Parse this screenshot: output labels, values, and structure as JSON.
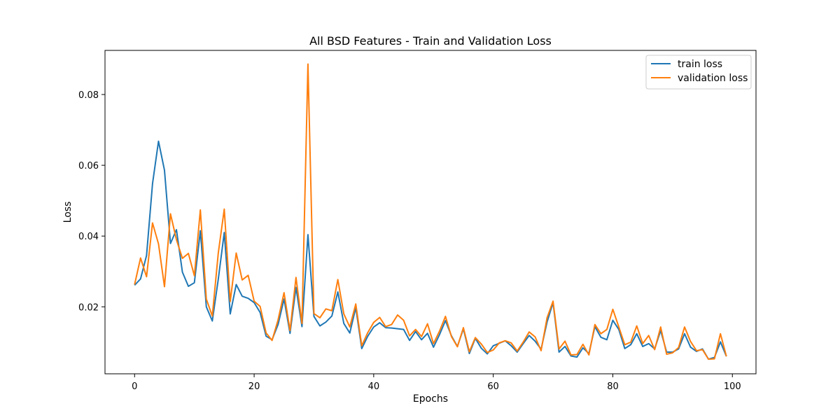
{
  "chart_data": {
    "type": "line",
    "title": "All BSD Features - Train and Validation Loss",
    "xlabel": "Epochs",
    "ylabel": "Loss",
    "xlim": [
      -4.95,
      103.95
    ],
    "ylim": [
      0.00107,
      0.09247
    ],
    "xticks": [
      0,
      20,
      40,
      60,
      80,
      100
    ],
    "yticks": [
      0.02,
      0.04,
      0.06,
      0.08
    ],
    "ytick_labels": [
      "0.02",
      "0.04",
      "0.06",
      "0.08"
    ],
    "grid": false,
    "legend_position": "top-right",
    "series": [
      {
        "name": "train loss",
        "color": "#1f77b4",
        "values": [
          0.0261,
          0.0279,
          0.0345,
          0.0548,
          0.0668,
          0.0586,
          0.0379,
          0.0418,
          0.0298,
          0.0258,
          0.0268,
          0.0415,
          0.02,
          0.016,
          0.0278,
          0.041,
          0.018,
          0.0263,
          0.023,
          0.0224,
          0.0212,
          0.0184,
          0.0117,
          0.0107,
          0.015,
          0.0222,
          0.0125,
          0.0255,
          0.0144,
          0.0404,
          0.0173,
          0.0146,
          0.0157,
          0.0174,
          0.0242,
          0.0153,
          0.0126,
          0.0198,
          0.0082,
          0.0117,
          0.0143,
          0.0155,
          0.0141,
          0.014,
          0.0138,
          0.0136,
          0.0105,
          0.013,
          0.0107,
          0.0125,
          0.0086,
          0.0121,
          0.0161,
          0.0118,
          0.0088,
          0.0138,
          0.0068,
          0.0111,
          0.0083,
          0.0067,
          0.009,
          0.0097,
          0.0104,
          0.009,
          0.0072,
          0.0096,
          0.0119,
          0.0103,
          0.008,
          0.0157,
          0.0212,
          0.0072,
          0.0088,
          0.0061,
          0.0058,
          0.0084,
          0.0068,
          0.0144,
          0.0114,
          0.0107,
          0.0162,
          0.0136,
          0.0082,
          0.0093,
          0.0124,
          0.0088,
          0.0096,
          0.0081,
          0.0133,
          0.0072,
          0.0072,
          0.0081,
          0.0124,
          0.0086,
          0.0074,
          0.0081,
          0.0052,
          0.0057,
          0.0101,
          0.006
        ]
      },
      {
        "name": "validation loss",
        "color": "#ff7f0e",
        "values": [
          0.0263,
          0.0338,
          0.0285,
          0.0437,
          0.0378,
          0.0257,
          0.0463,
          0.039,
          0.0337,
          0.0351,
          0.0288,
          0.0474,
          0.0222,
          0.0174,
          0.0352,
          0.0476,
          0.0215,
          0.0352,
          0.0276,
          0.0289,
          0.0216,
          0.0201,
          0.0126,
          0.0105,
          0.0163,
          0.024,
          0.0133,
          0.0283,
          0.0153,
          0.0886,
          0.0181,
          0.0169,
          0.0194,
          0.0189,
          0.0277,
          0.018,
          0.0143,
          0.0208,
          0.009,
          0.0127,
          0.0156,
          0.017,
          0.0144,
          0.015,
          0.0177,
          0.0162,
          0.0118,
          0.0136,
          0.0116,
          0.0152,
          0.0096,
          0.0131,
          0.0173,
          0.0116,
          0.0087,
          0.0141,
          0.0073,
          0.0113,
          0.0095,
          0.0071,
          0.0078,
          0.0098,
          0.0104,
          0.0098,
          0.0075,
          0.01,
          0.0129,
          0.0115,
          0.0076,
          0.0169,
          0.0216,
          0.0081,
          0.0103,
          0.0064,
          0.0065,
          0.0094,
          0.0064,
          0.015,
          0.0124,
          0.0136,
          0.0193,
          0.0143,
          0.0093,
          0.01,
          0.0146,
          0.0096,
          0.0119,
          0.0079,
          0.0143,
          0.0066,
          0.007,
          0.0085,
          0.0143,
          0.0102,
          0.0076,
          0.0079,
          0.0052,
          0.0053,
          0.0124,
          0.006
        ]
      }
    ]
  }
}
